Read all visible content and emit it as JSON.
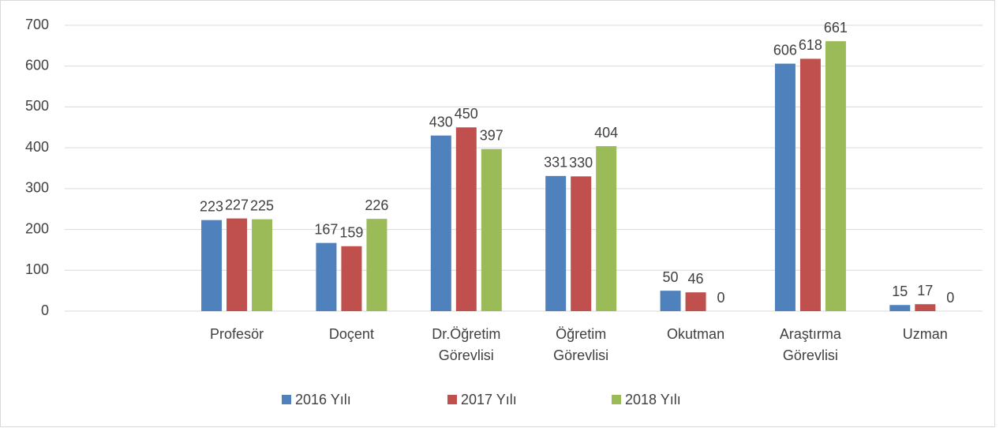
{
  "chart_data": {
    "type": "bar",
    "categories": [
      null,
      "Profesör",
      "Doçent",
      "Dr.Öğretim Görevlisi",
      "Öğretim Görevlisi",
      "Okutman",
      "Araştırma Görevlisi",
      "Uzman"
    ],
    "series": [
      {
        "name": "2016 Yılı",
        "color": "#4f81bd",
        "values": [
          null,
          223,
          167,
          430,
          331,
          50,
          606,
          15
        ]
      },
      {
        "name": "2017 Yılı",
        "color": "#c0504d",
        "values": [
          null,
          227,
          159,
          450,
          330,
          46,
          618,
          17
        ]
      },
      {
        "name": "2018 Yılı",
        "color": "#9bbb59",
        "values": [
          null,
          225,
          226,
          397,
          404,
          0,
          661,
          0
        ]
      }
    ],
    "ylim": [
      0,
      700
    ],
    "yticks": [
      0,
      100,
      200,
      300,
      400,
      500,
      600,
      700
    ],
    "grid": true,
    "legend": "bottom"
  }
}
